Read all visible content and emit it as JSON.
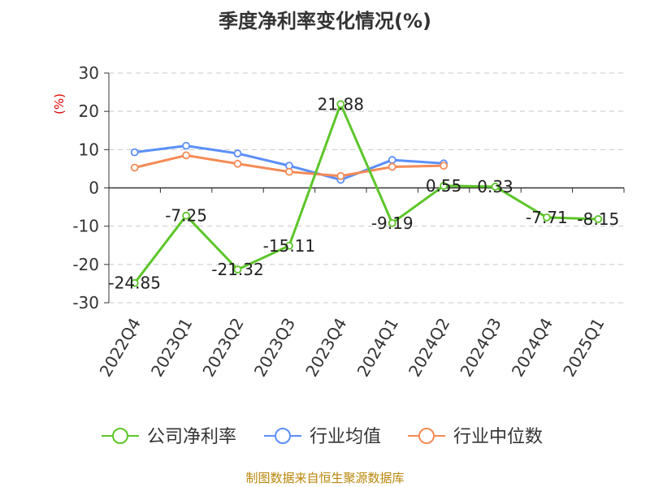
{
  "chart_data": {
    "type": "line",
    "title": "季度净利率变化情况(%)",
    "ylabel": "(%)",
    "xlabel": "",
    "categories": [
      "2022Q4",
      "2023Q1",
      "2023Q2",
      "2023Q3",
      "2023Q4",
      "2024Q1",
      "2024Q2",
      "2024Q3",
      "2024Q4",
      "2025Q1"
    ],
    "ylim": [
      -30,
      30
    ],
    "yticks": [
      30,
      20,
      10,
      0,
      -10,
      -20,
      -30
    ],
    "grid": true,
    "legend_position": "bottom",
    "series": [
      {
        "name": "公司净利率",
        "color": "#5cc629",
        "values": [
          -24.85,
          -7.25,
          -21.32,
          -15.11,
          21.88,
          -9.19,
          0.55,
          0.33,
          -7.71,
          -8.15
        ],
        "labels": [
          "-24.85",
          "-7.25",
          "-21.32",
          "-15.11",
          "21.88",
          "-9.19",
          "0.55",
          "0.33",
          "-7.71",
          "-8.15"
        ]
      },
      {
        "name": "行业均值",
        "color": "#5b8ff9",
        "values": [
          9.3,
          11.0,
          9.0,
          5.8,
          2.1,
          7.3,
          6.4,
          null,
          null,
          null
        ]
      },
      {
        "name": "行业中位数",
        "color": "#f58a55",
        "values": [
          5.3,
          8.5,
          6.3,
          4.2,
          3.1,
          5.5,
          5.8,
          null,
          null,
          null
        ]
      }
    ]
  },
  "source": "制图数据来自恒生聚源数据库"
}
